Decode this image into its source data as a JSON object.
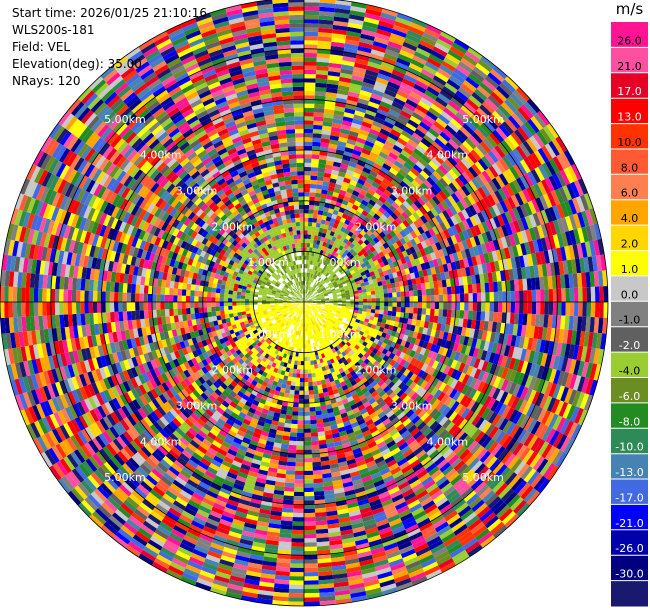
{
  "header": {
    "start_time": "Start time: 2026/01/25 21:10:16",
    "instrument": "WLS200s-181",
    "field": "Field: VEL",
    "elevation": "Elevation(deg): 35.00",
    "nrays": "NRays: 120"
  },
  "chart_data": {
    "type": "ppi-radar",
    "field": "VEL",
    "elevation_deg": 35.0,
    "nrays": 120,
    "max_range_km": 6.0,
    "range_rings_km": [
      1.0,
      2.0,
      3.0,
      4.0,
      5.0,
      6.0
    ],
    "ring_labels": [
      "1.00km",
      "2.00km",
      "3.00km",
      "4.00km",
      "5.00km",
      "6.00km"
    ],
    "colorbar": {
      "unit": "m/s",
      "ticks": [
        "26.0",
        "21.0",
        "17.0",
        "13.0",
        "10.0",
        "8.0",
        "6.0",
        "4.0",
        "2.0",
        "1.0",
        "0.0",
        "-1.0",
        "-2.0",
        "-4.0",
        "-6.0",
        "-8.0",
        "-10.0",
        "-13.0",
        "-17.0",
        "-21.0",
        "-26.0",
        "-30.0"
      ],
      "colors": [
        "#ff1493",
        "#ff4fa0",
        "#e60026",
        "#ff0000",
        "#ff3300",
        "#ff5a33",
        "#ff7f50",
        "#ffa500",
        "#ffd700",
        "#ffff00",
        "#c8c8c8",
        "#808080",
        "#606060",
        "#9acd32",
        "#6b8e23",
        "#228b22",
        "#2e8b57",
        "#4682b4",
        "#4169e1",
        "#0000ff",
        "#0000aa",
        "#000080",
        "#191970"
      ]
    }
  }
}
